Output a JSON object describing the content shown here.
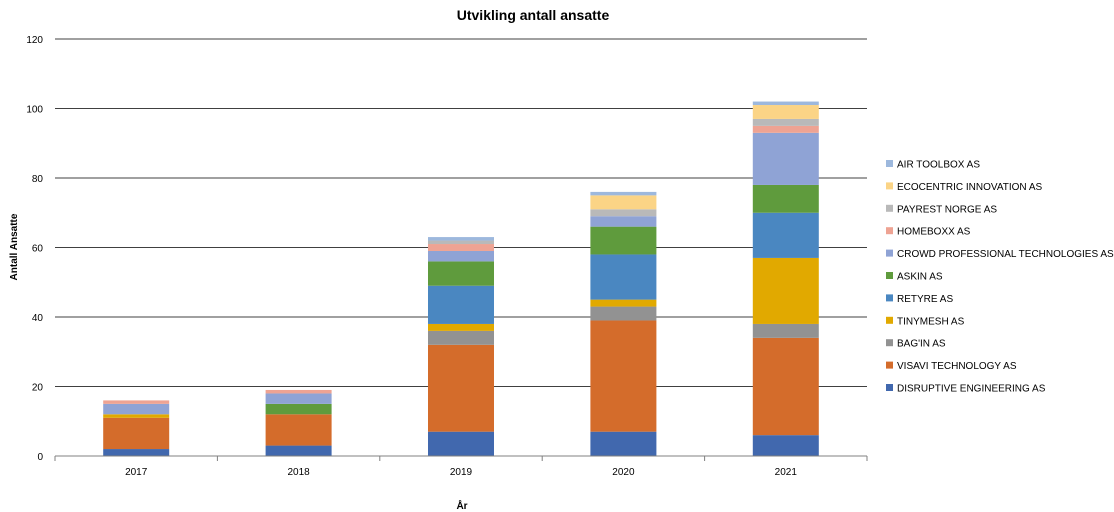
{
  "chart_data": {
    "type": "bar",
    "stacked": true,
    "title": "Utvikling antall ansatte",
    "xlabel": "År",
    "ylabel": "Antall Ansatte",
    "ylim": [
      0,
      120
    ],
    "yticks": [
      0,
      20,
      40,
      60,
      80,
      100,
      120
    ],
    "grid": true,
    "legend_position": "right",
    "categories": [
      "2017",
      "2018",
      "2019",
      "2020",
      "2021"
    ],
    "series": [
      {
        "name": "DISRUPTIVE ENGINEERING AS",
        "color": "#4168AE",
        "values": [
          2,
          3,
          7,
          7,
          6
        ]
      },
      {
        "name": "VISAVI TECHNOLOGY AS",
        "color": "#D46C2B",
        "values": [
          9,
          9,
          25,
          32,
          28
        ]
      },
      {
        "name": "BAG'IN AS",
        "color": "#929292",
        "values": [
          0,
          0,
          4,
          4,
          4
        ]
      },
      {
        "name": "TINYMESH AS",
        "color": "#E1A900",
        "values": [
          1,
          0,
          2,
          2,
          19
        ]
      },
      {
        "name": "RETYRE AS",
        "color": "#4A87C1",
        "values": [
          0,
          0,
          11,
          13,
          13
        ]
      },
      {
        "name": "ASKIN AS",
        "color": "#5F9B3D",
        "values": [
          0,
          3,
          7,
          8,
          8
        ]
      },
      {
        "name": "CROWD PROFESSIONAL TECHNOLOGIES AS",
        "color": "#8FA3D5",
        "values": [
          3,
          3,
          3,
          3,
          15
        ]
      },
      {
        "name": "HOMEBOXX AS",
        "color": "#EEA393",
        "values": [
          1,
          1,
          2,
          0,
          2
        ]
      },
      {
        "name": "PAYREST NORGE AS",
        "color": "#B9B9B9",
        "values": [
          0,
          0,
          1,
          2,
          2
        ]
      },
      {
        "name": "ECOCENTRIC INNOVATION AS",
        "color": "#FBD486",
        "values": [
          0,
          0,
          0,
          4,
          4
        ]
      },
      {
        "name": "AIR TOOLBOX AS",
        "color": "#9DB8DD",
        "values": [
          0,
          0,
          1,
          1,
          1
        ]
      }
    ]
  }
}
